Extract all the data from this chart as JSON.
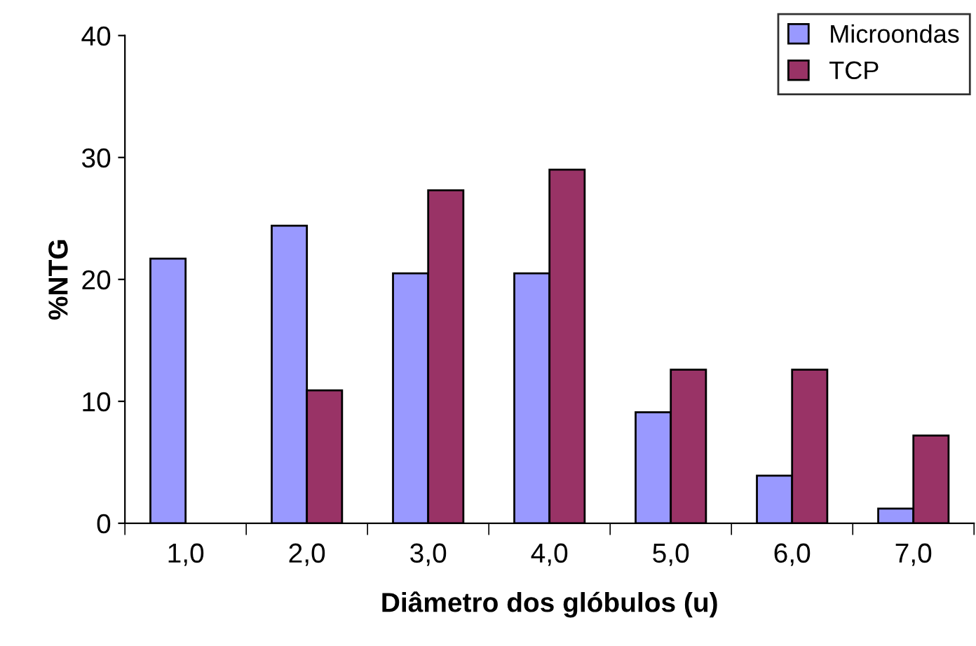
{
  "chart_data": {
    "type": "bar",
    "xlabel": "Diâmetro dos glóbulos (u)",
    "ylabel": "%NTG",
    "categories": [
      "1,0",
      "2,0",
      "3,0",
      "4,0",
      "5,0",
      "6,0",
      "7,0"
    ],
    "series": [
      {
        "name": "Microondas",
        "color": "#9999ff",
        "values": [
          21.7,
          24.4,
          20.5,
          20.5,
          9.1,
          3.9,
          1.2
        ]
      },
      {
        "name": "TCP",
        "color": "#993366",
        "values": [
          null,
          10.9,
          27.3,
          29.0,
          12.6,
          12.6,
          7.2
        ]
      }
    ],
    "ylim": [
      0,
      40
    ],
    "yticks": [
      0,
      10,
      20,
      30,
      40
    ],
    "grid": false,
    "legend": "top right"
  }
}
